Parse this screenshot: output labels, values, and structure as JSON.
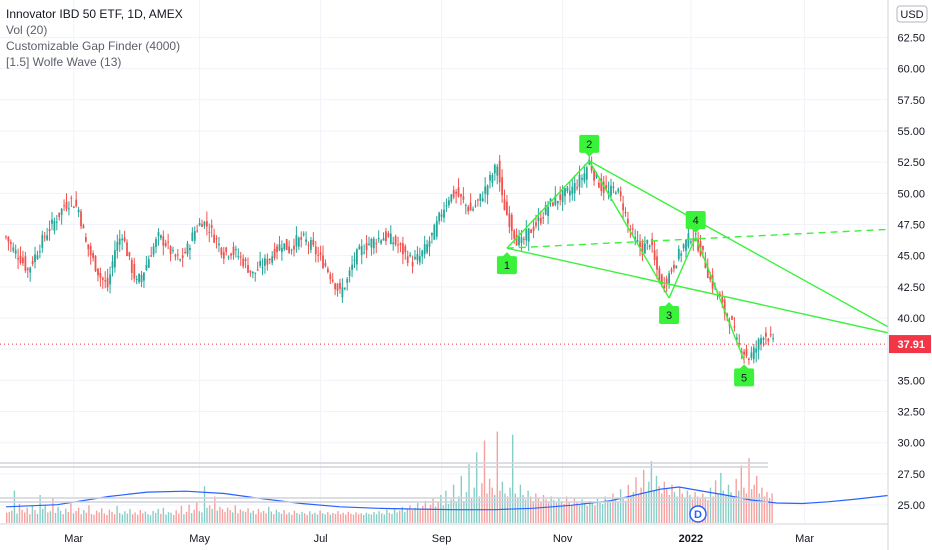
{
  "legend": {
    "title": "Innovator IBD 50 ETF, 1D, AMEX",
    "studies": [
      "Vol (20)",
      "Customizable Gap Finder (4000)",
      "[1.5] Wolfe Wave (13)"
    ]
  },
  "currency_badge": "USD",
  "last_price_label": "37.91",
  "dividend_marker": "D",
  "colors": {
    "up": "#26a69a",
    "down": "#ef5350",
    "wolfe": "#3bf23b",
    "volume_ma": "#2962ff",
    "axis_text": "#131722",
    "grid": "#f0f3fa",
    "price_badge": "#f23645"
  },
  "chart_data": {
    "type": "candlestick",
    "title": "Innovator IBD 50 ETF, 1D, AMEX",
    "xlabel": "",
    "ylabel": "",
    "y_ticks": [
      "25.00",
      "27.50",
      "30.00",
      "32.50",
      "35.00",
      "37.50",
      "40.00",
      "42.50",
      "45.00",
      "47.50",
      "50.00",
      "52.50",
      "55.00",
      "57.50",
      "60.00",
      "62.50"
    ],
    "x_ticks": [
      "Mar",
      "May",
      "Jul",
      "Sep",
      "Nov",
      "2022",
      "Mar"
    ],
    "ylim": [
      23.8,
      63.5
    ],
    "price_path": [
      [
        0,
        46.5
      ],
      [
        3,
        45.5
      ],
      [
        6,
        44.8
      ],
      [
        9,
        43.8
      ],
      [
        12,
        45.0
      ],
      [
        15,
        46.2
      ],
      [
        18,
        47.2
      ],
      [
        21,
        48.0
      ],
      [
        24,
        49.0
      ],
      [
        27,
        49.4
      ],
      [
        30,
        48.7
      ],
      [
        33,
        46.0
      ],
      [
        36,
        44.6
      ],
      [
        39,
        43.3
      ],
      [
        42,
        42.5
      ],
      [
        45,
        45.5
      ],
      [
        48,
        46.8
      ],
      [
        51,
        44.5
      ],
      [
        54,
        42.8
      ],
      [
        57,
        43.8
      ],
      [
        60,
        45.3
      ],
      [
        63,
        46.5
      ],
      [
        66,
        46.0
      ],
      [
        69,
        45.0
      ],
      [
        72,
        44.6
      ],
      [
        75,
        45.6
      ],
      [
        78,
        47.0
      ],
      [
        81,
        47.8
      ],
      [
        84,
        47.2
      ],
      [
        87,
        46.2
      ],
      [
        90,
        45.2
      ],
      [
        93,
        45.4
      ],
      [
        96,
        45.0
      ],
      [
        99,
        44.3
      ],
      [
        102,
        43.5
      ],
      [
        105,
        44.1
      ],
      [
        108,
        44.6
      ],
      [
        111,
        45.3
      ],
      [
        114,
        46.0
      ],
      [
        117,
        45.5
      ],
      [
        120,
        46.2
      ],
      [
        123,
        46.3
      ],
      [
        126,
        45.8
      ],
      [
        129,
        45.0
      ],
      [
        132,
        44.2
      ],
      [
        135,
        43.1
      ],
      [
        138,
        42.0
      ],
      [
        141,
        43.0
      ],
      [
        144,
        44.8
      ],
      [
        147,
        45.5
      ],
      [
        150,
        46.0
      ],
      [
        153,
        46.3
      ],
      [
        156,
        46.5
      ],
      [
        159,
        46.3
      ],
      [
        162,
        45.8
      ],
      [
        165,
        45.1
      ],
      [
        168,
        44.5
      ],
      [
        171,
        44.9
      ],
      [
        174,
        45.8
      ],
      [
        177,
        47.0
      ],
      [
        180,
        48.5
      ],
      [
        183,
        49.7
      ],
      [
        186,
        50.0
      ],
      [
        189,
        49.3
      ],
      [
        192,
        48.6
      ],
      [
        195,
        49.3
      ],
      [
        198,
        50.3
      ],
      [
        201,
        51.5
      ],
      [
        203,
        52.3
      ],
      [
        205,
        49.5
      ],
      [
        207,
        48.3
      ],
      [
        209,
        47.3
      ],
      [
        211,
        46.3
      ],
      [
        213,
        46.0
      ],
      [
        215,
        46.6
      ],
      [
        218,
        47.3
      ],
      [
        221,
        48.0
      ],
      [
        224,
        49.0
      ],
      [
        227,
        49.5
      ],
      [
        230,
        49.8
      ],
      [
        233,
        50.2
      ],
      [
        236,
        50.8
      ],
      [
        239,
        51.6
      ],
      [
        241,
        52.6
      ],
      [
        243,
        51.5
      ],
      [
        246,
        50.5
      ],
      [
        249,
        50.0
      ],
      [
        252,
        50.5
      ],
      [
        255,
        49.0
      ],
      [
        257,
        47.5
      ],
      [
        260,
        46.2
      ],
      [
        263,
        45.5
      ],
      [
        266,
        46.2
      ],
      [
        268,
        44.5
      ],
      [
        271,
        42.5
      ],
      [
        274,
        43.5
      ],
      [
        277,
        44.7
      ],
      [
        280,
        45.8
      ],
      [
        283,
        46.6
      ],
      [
        285,
        46.3
      ],
      [
        288,
        45.0
      ],
      [
        291,
        43.0
      ],
      [
        294,
        42.0
      ],
      [
        297,
        40.5
      ],
      [
        300,
        39.5
      ],
      [
        302,
        38.0
      ],
      [
        305,
        37.3
      ],
      [
        307,
        36.8
      ],
      [
        310,
        37.6
      ],
      [
        313,
        38.8
      ],
      [
        315,
        38.5
      ],
      [
        317,
        37.9
      ]
    ],
    "volume": {
      "ylim": [
        0,
        3.8
      ],
      "bars": [
        0.35,
        0.38,
        0.42,
        1.1,
        0.32,
        0.65,
        0.45,
        0.36,
        0.52,
        0.3,
        0.58,
        0.44,
        0.31,
        0.95,
        0.48,
        0.62,
        0.36,
        0.4,
        0.88,
        0.34,
        0.55,
        0.42,
        0.3,
        0.49,
        0.37,
        0.66,
        0.33,
        0.41,
        0.52,
        0.3,
        0.44,
        0.35,
        0.6,
        0.31,
        0.28,
        0.42,
        0.36,
        0.5,
        0.33,
        0.27,
        0.45,
        0.38,
        0.3,
        0.58,
        0.34,
        0.29,
        0.4,
        0.32,
        0.47,
        0.3,
        0.36,
        0.28,
        0.44,
        0.33,
        0.39,
        0.3,
        0.26,
        0.41,
        0.34,
        0.48,
        0.31,
        0.52,
        0.29,
        0.37,
        0.35,
        0.27,
        0.43,
        0.32,
        0.58,
        0.3,
        0.38,
        0.62,
        0.34,
        0.45,
        0.71,
        0.4,
        0.36,
        1.25,
        0.52,
        0.6,
        0.48,
        0.9,
        0.42,
        0.55,
        0.47,
        0.38,
        0.52,
        0.44,
        0.36,
        0.6,
        0.33,
        0.46,
        0.4,
        0.38,
        0.5,
        0.35,
        0.42,
        0.3,
        0.48,
        0.36,
        0.41,
        0.33,
        0.55,
        0.39,
        0.3,
        0.45,
        0.37,
        0.32,
        0.44,
        0.3,
        0.36,
        0.28,
        0.42,
        0.34,
        0.3,
        0.38,
        0.33,
        0.27,
        0.4,
        0.31,
        0.35,
        0.29,
        0.42,
        0.33,
        0.3,
        0.37,
        0.28,
        0.34,
        0.31,
        0.4,
        0.3,
        0.35,
        0.29,
        0.38,
        0.32,
        0.28,
        0.36,
        0.3,
        0.33,
        0.27,
        0.35,
        0.31,
        0.29,
        0.37,
        0.3,
        0.4,
        0.33,
        0.29,
        0.45,
        0.35,
        0.31,
        0.5,
        0.36,
        0.42,
        0.55,
        0.38,
        0.48,
        0.6,
        0.44,
        0.52,
        0.68,
        0.46,
        0.58,
        0.75,
        0.5,
        0.62,
        0.85,
        0.56,
        0.7,
        0.95,
        0.6,
        1.1,
        0.65,
        0.8,
        1.3,
        0.7,
        0.9,
        1.6,
        0.75,
        1.05,
        2.0,
        0.85,
        1.2,
        2.4,
        0.9,
        1.35,
        2.8,
        1.0,
        1.5,
        1.2,
        0.95,
        3.1,
        1.1,
        1.4,
        1.0,
        0.9,
        1.2,
        3.0,
        1.0,
        0.85,
        1.3,
        0.95,
        0.8,
        1.1,
        0.9,
        0.75,
        1.0,
        0.85,
        0.7,
        0.95,
        0.8,
        0.72,
        0.9,
        0.78,
        0.68,
        0.86,
        0.74,
        0.65,
        0.9,
        0.7,
        0.62,
        0.85,
        0.72,
        0.6,
        0.8,
        0.68,
        0.58,
        0.75,
        0.66,
        0.6,
        0.82,
        0.7,
        0.64,
        0.9,
        0.75,
        0.68,
        1.0,
        0.8,
        0.72,
        1.15,
        0.85,
        0.76,
        1.3,
        0.9,
        1.05,
        1.55,
        0.95,
        1.2,
        1.8,
        1.0,
        1.4,
        2.1,
        1.1,
        1.6,
        1.25,
        1.0,
        1.4,
        1.15,
        0.95,
        1.3,
        1.05,
        0.9,
        1.2,
        1.0,
        0.85,
        1.1,
        0.95,
        0.8,
        1.05,
        0.9,
        0.82,
        1.0,
        0.88,
        0.78,
        1.2,
        0.9,
        1.45,
        1.0,
        1.7,
        1.1,
        0.95,
        1.3,
        1.05,
        0.9,
        1.5,
        1.1,
        1.95,
        1.2,
        1.0,
        2.2,
        1.15,
        1.3,
        1.6,
        1.0,
        1.2,
        0.9,
        1.05,
        0.85,
        1.0
      ]
    },
    "volume_ma": [
      [
        0,
        0.55
      ],
      [
        20,
        0.62
      ],
      [
        40,
        0.9
      ],
      [
        55,
        1.05
      ],
      [
        70,
        1.08
      ],
      [
        85,
        1.0
      ],
      [
        100,
        0.82
      ],
      [
        115,
        0.66
      ],
      [
        130,
        0.55
      ],
      [
        145,
        0.5
      ],
      [
        160,
        0.47
      ],
      [
        175,
        0.45
      ],
      [
        190,
        0.45
      ],
      [
        205,
        0.5
      ],
      [
        220,
        0.6
      ],
      [
        235,
        0.75
      ],
      [
        245,
        0.95
      ],
      [
        255,
        1.15
      ],
      [
        262,
        1.22
      ],
      [
        270,
        1.1
      ],
      [
        280,
        0.95
      ],
      [
        290,
        0.78
      ],
      [
        300,
        0.68
      ],
      [
        310,
        0.66
      ],
      [
        320,
        0.72
      ],
      [
        330,
        0.8
      ],
      [
        340,
        0.9
      ],
      [
        350,
        1.0
      ],
      [
        360,
        1.05
      ],
      [
        375,
        0.9
      ],
      [
        390,
        0.88
      ],
      [
        405,
        0.98
      ],
      [
        415,
        0.95
      ]
    ],
    "wolfe_wave": {
      "points": [
        {
          "label": "1",
          "x": 207,
          "y": 45.6
        },
        {
          "label": "2",
          "x": 241,
          "y": 52.6
        },
        {
          "label": "3",
          "x": 274,
          "y": 41.6
        },
        {
          "label": "4",
          "x": 285,
          "y": 46.5
        },
        {
          "label": "5",
          "x": 305,
          "y": 36.6
        }
      ],
      "projection_end": {
        "x": 395,
        "y": 47.4
      },
      "target_end": {
        "x": 395,
        "y": 36.0
      },
      "channel_end": {
        "x": 395,
        "y": 37.5
      }
    }
  }
}
